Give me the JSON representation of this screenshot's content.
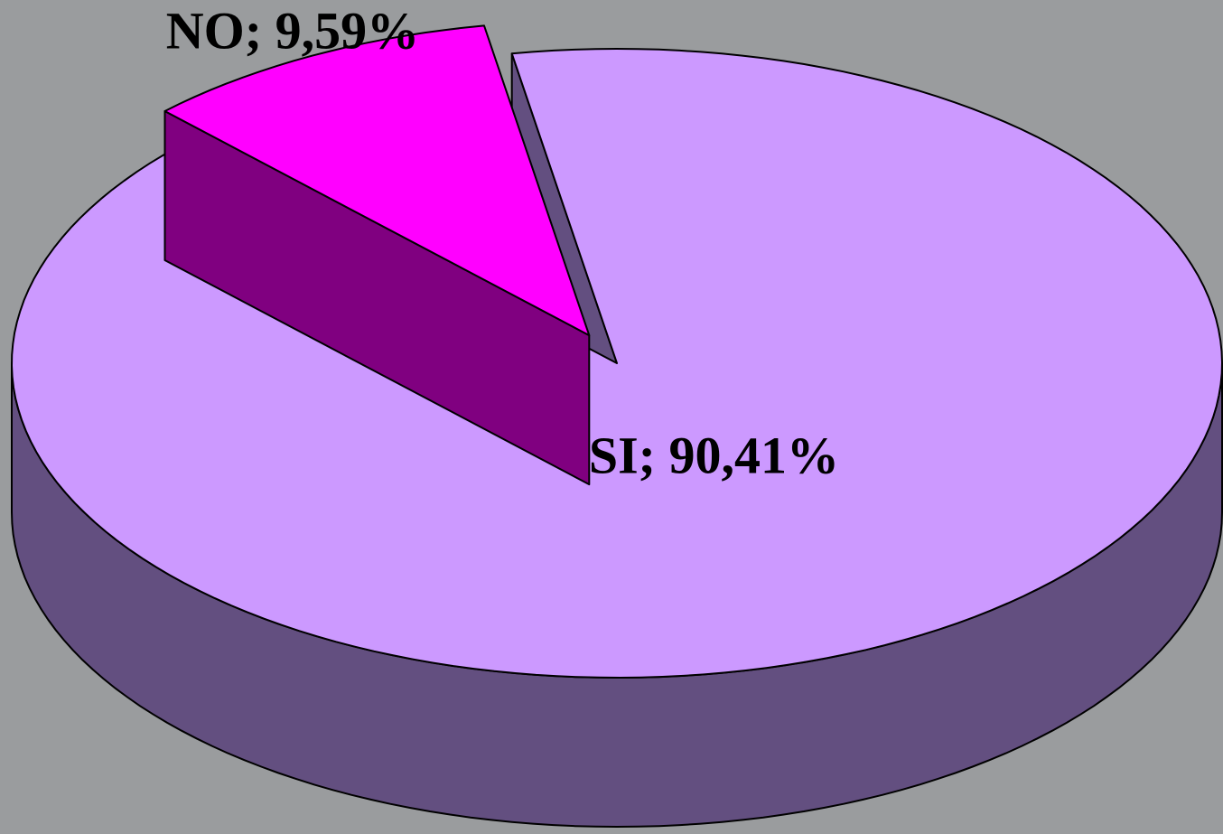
{
  "chart_data": {
    "type": "pie",
    "values": [
      90.41,
      9.59
    ],
    "value_labels": [
      "SI; 90,41%",
      "NO; 9,59%"
    ],
    "colors": [
      "#cc99ff",
      "#ff00ff"
    ],
    "side_colors": [
      "#634f80",
      "#800080"
    ],
    "start_angle": -100,
    "exploded": [
      false,
      true
    ]
  }
}
